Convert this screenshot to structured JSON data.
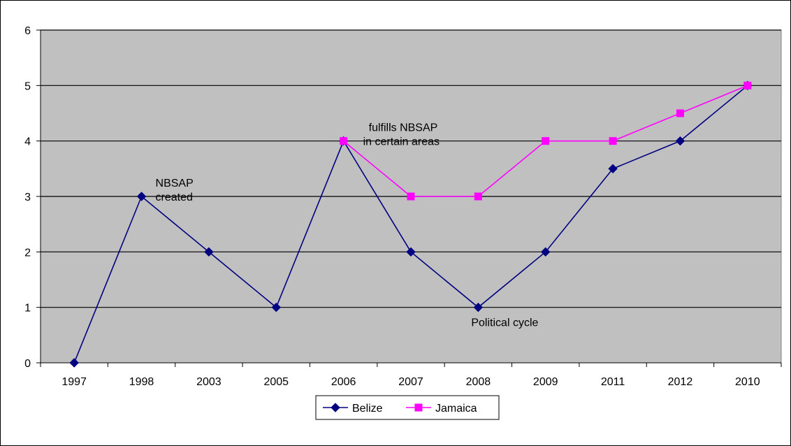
{
  "chart_data": {
    "type": "line",
    "categories": [
      "1997",
      "1998",
      "2003",
      "2005",
      "2006",
      "2007",
      "2008",
      "2009",
      "2011",
      "2012",
      "2010"
    ],
    "ylim": [
      0,
      6
    ],
    "yticks": [
      "0",
      "1",
      "2",
      "3",
      "4",
      "5",
      "6"
    ],
    "grid": true,
    "plot_background": "#c0c0c0",
    "legend_position": "bottom",
    "series": [
      {
        "name": "Belize",
        "color": "#000080",
        "marker": "diamond",
        "values": [
          0,
          3,
          2,
          1,
          4,
          2,
          1,
          2,
          3.5,
          4,
          5
        ]
      },
      {
        "name": "Jamaica",
        "color": "#ff00ff",
        "marker": "square",
        "values": [
          null,
          null,
          null,
          null,
          4,
          3,
          3,
          4,
          4,
          4.5,
          5
        ]
      }
    ],
    "annotations": [
      {
        "lines": [
          "NBSAP",
          "created"
        ],
        "category": "1998",
        "y": 3
      },
      {
        "lines": [
          "fulfills NBSAP",
          "in certain areas"
        ],
        "category": "2006",
        "y": 4
      },
      {
        "lines": [
          "Political cycle"
        ],
        "category": "2008",
        "y": 1
      }
    ]
  }
}
